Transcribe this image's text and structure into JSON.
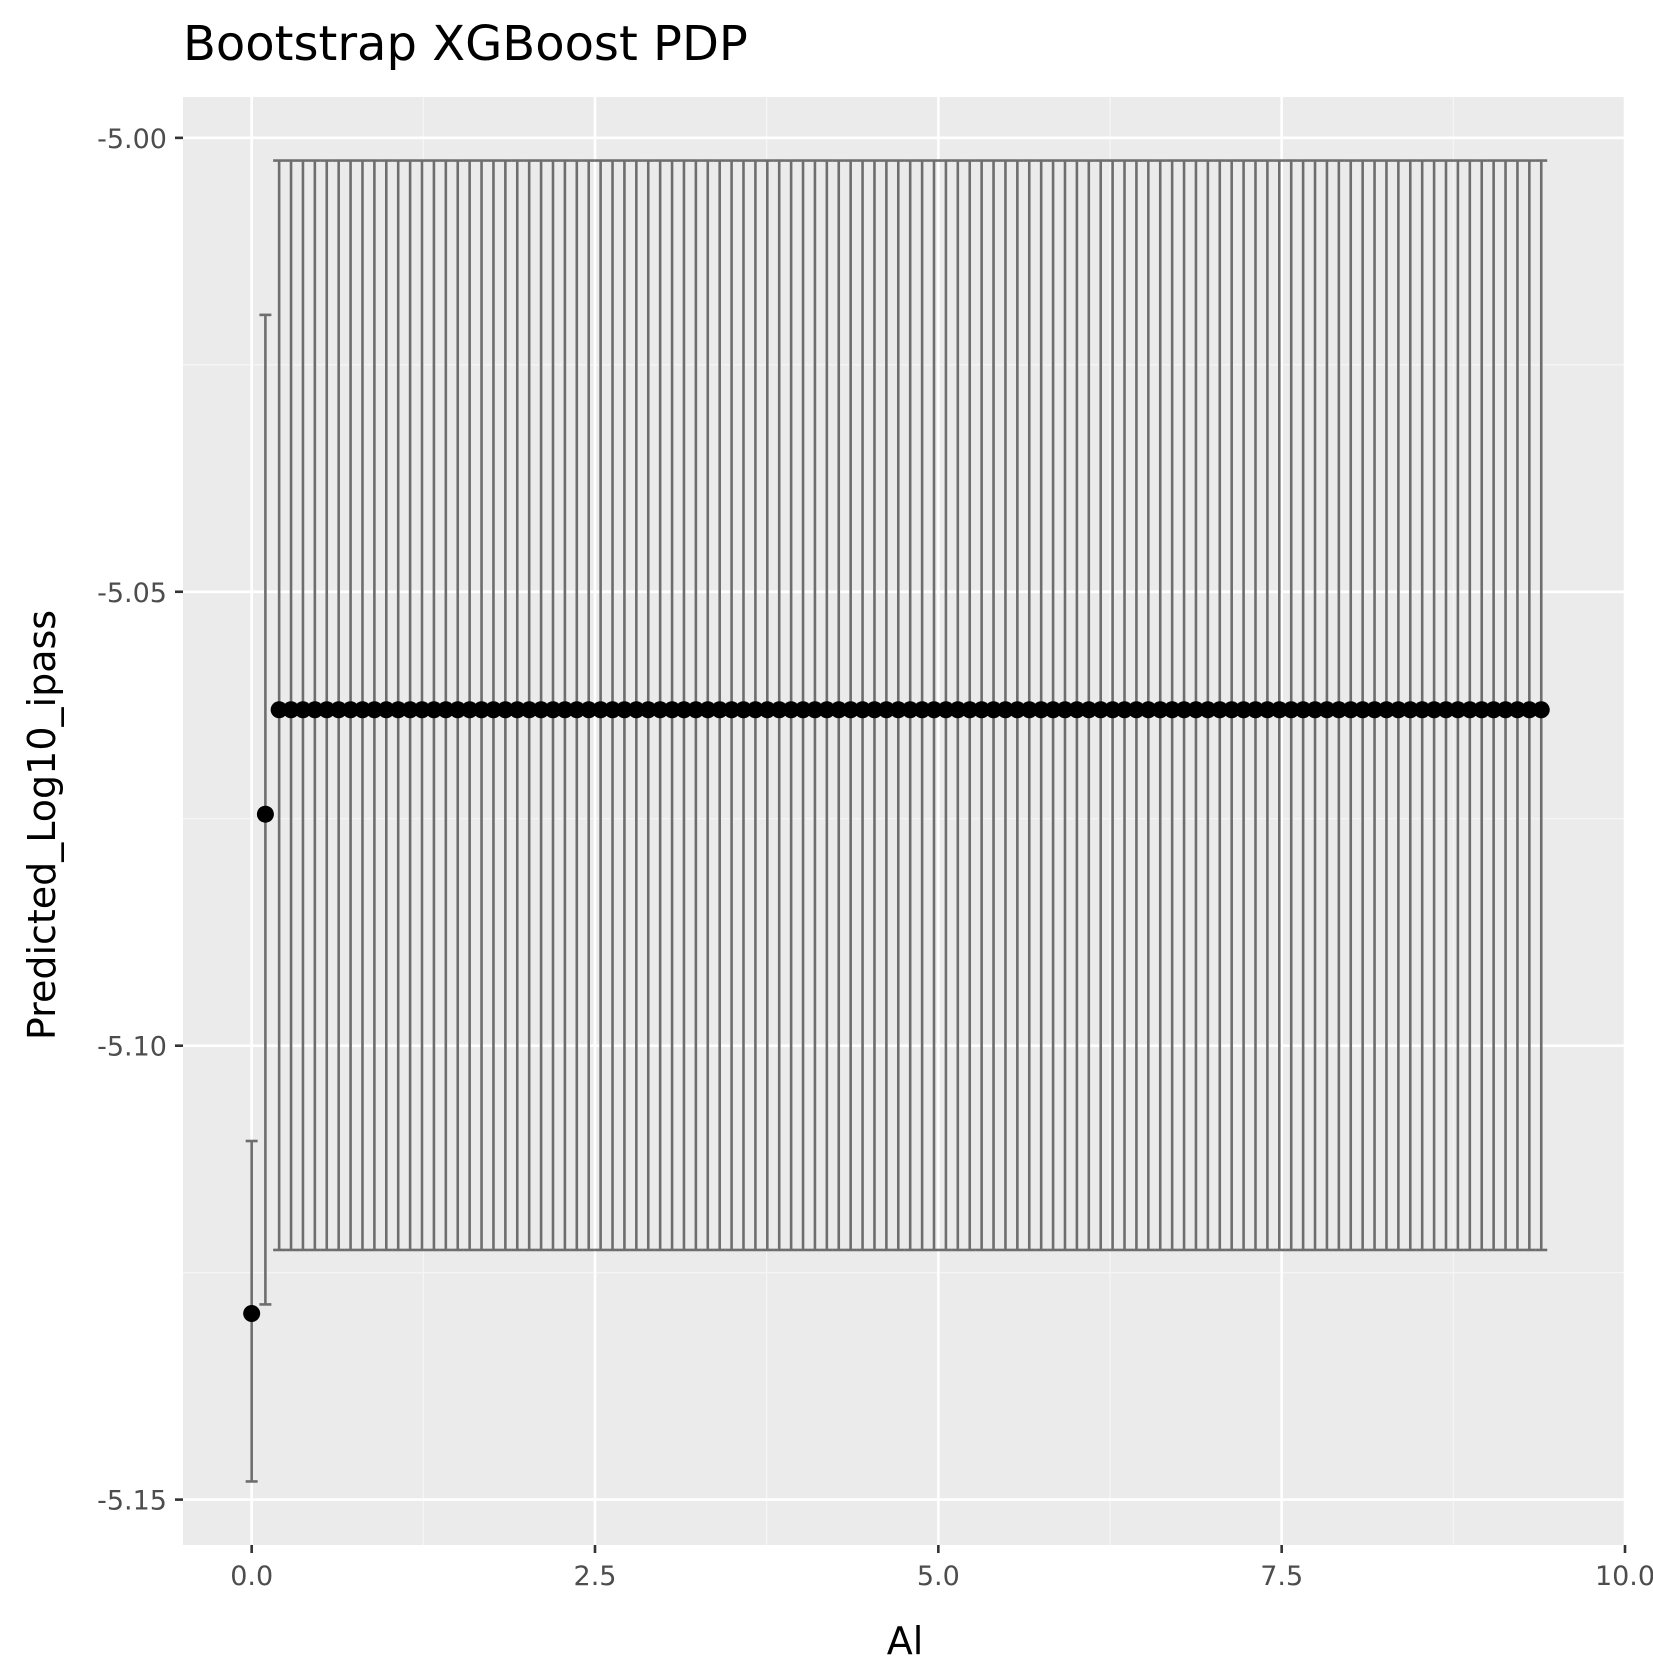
{
  "chart_data": {
    "type": "scatter",
    "title": "Bootstrap XGBoost PDP",
    "xlabel": "Al",
    "ylabel": "Predicted_Log10_ipass",
    "xlim": [
      -0.5,
      10.0
    ],
    "ylim": [
      -5.155,
      -4.9955
    ],
    "x_ticks": [
      0.0,
      2.5,
      5.0,
      7.5,
      10.0
    ],
    "x_tick_labels": [
      "0.0",
      "2.5",
      "5.0",
      "7.5",
      "10.0"
    ],
    "y_ticks": [
      -5.0,
      -5.05,
      -5.1,
      -5.15
    ],
    "y_tick_labels": [
      "-5.00",
      "-5.05",
      "-5.10",
      "-5.15"
    ],
    "grid": true,
    "legend": "none",
    "errorbars": true,
    "special_points": [
      {
        "x": 0.0,
        "y": -5.1295,
        "lower": -5.148,
        "upper": -5.1105
      },
      {
        "x": 0.1,
        "y": -5.0745,
        "lower": -5.1285,
        "upper": -5.0195
      }
    ],
    "repeated_points": {
      "x_start": 0.2,
      "x_step": 0.0867,
      "count": 107,
      "y": -5.063,
      "lower": -5.1225,
      "upper": -5.0025
    },
    "colors": {
      "panel_background": "#ebebeb",
      "grid_major": "#ffffff",
      "grid_minor": "#f5f5f5",
      "point": "#000000",
      "errorbar": "#6e6e6e"
    }
  }
}
